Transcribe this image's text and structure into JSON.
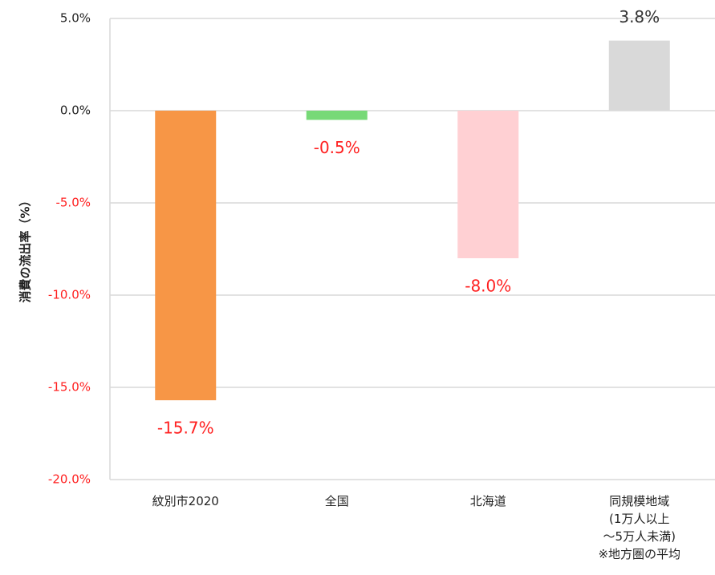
{
  "chart_data": {
    "type": "bar",
    "ylabel": "消費の流出率（%）",
    "categories": [
      "紋別市2020",
      "全国",
      "北海道",
      "同規模地域\n(1万人以上\n～5万人未満)\n※地方圏の平均"
    ],
    "values": [
      -15.7,
      -0.5,
      -8.0,
      3.8
    ],
    "value_labels": [
      "-15.7%",
      "-0.5%",
      "-8.0%",
      "3.8%"
    ],
    "colors": [
      "#f79646",
      "#77d977",
      "#ffd0d3",
      "#d9d9d9"
    ],
    "ylim": [
      -20,
      5
    ],
    "yticks": [
      {
        "value": -20,
        "label": "-20.0%"
      },
      {
        "value": -15,
        "label": "-15.0%"
      },
      {
        "value": -10,
        "label": "-10.0%"
      },
      {
        "value": -5,
        "label": "-5.0%"
      },
      {
        "value": 0,
        "label": "0.0%"
      },
      {
        "value": 5,
        "label": "5.0%"
      }
    ],
    "grid": true
  }
}
